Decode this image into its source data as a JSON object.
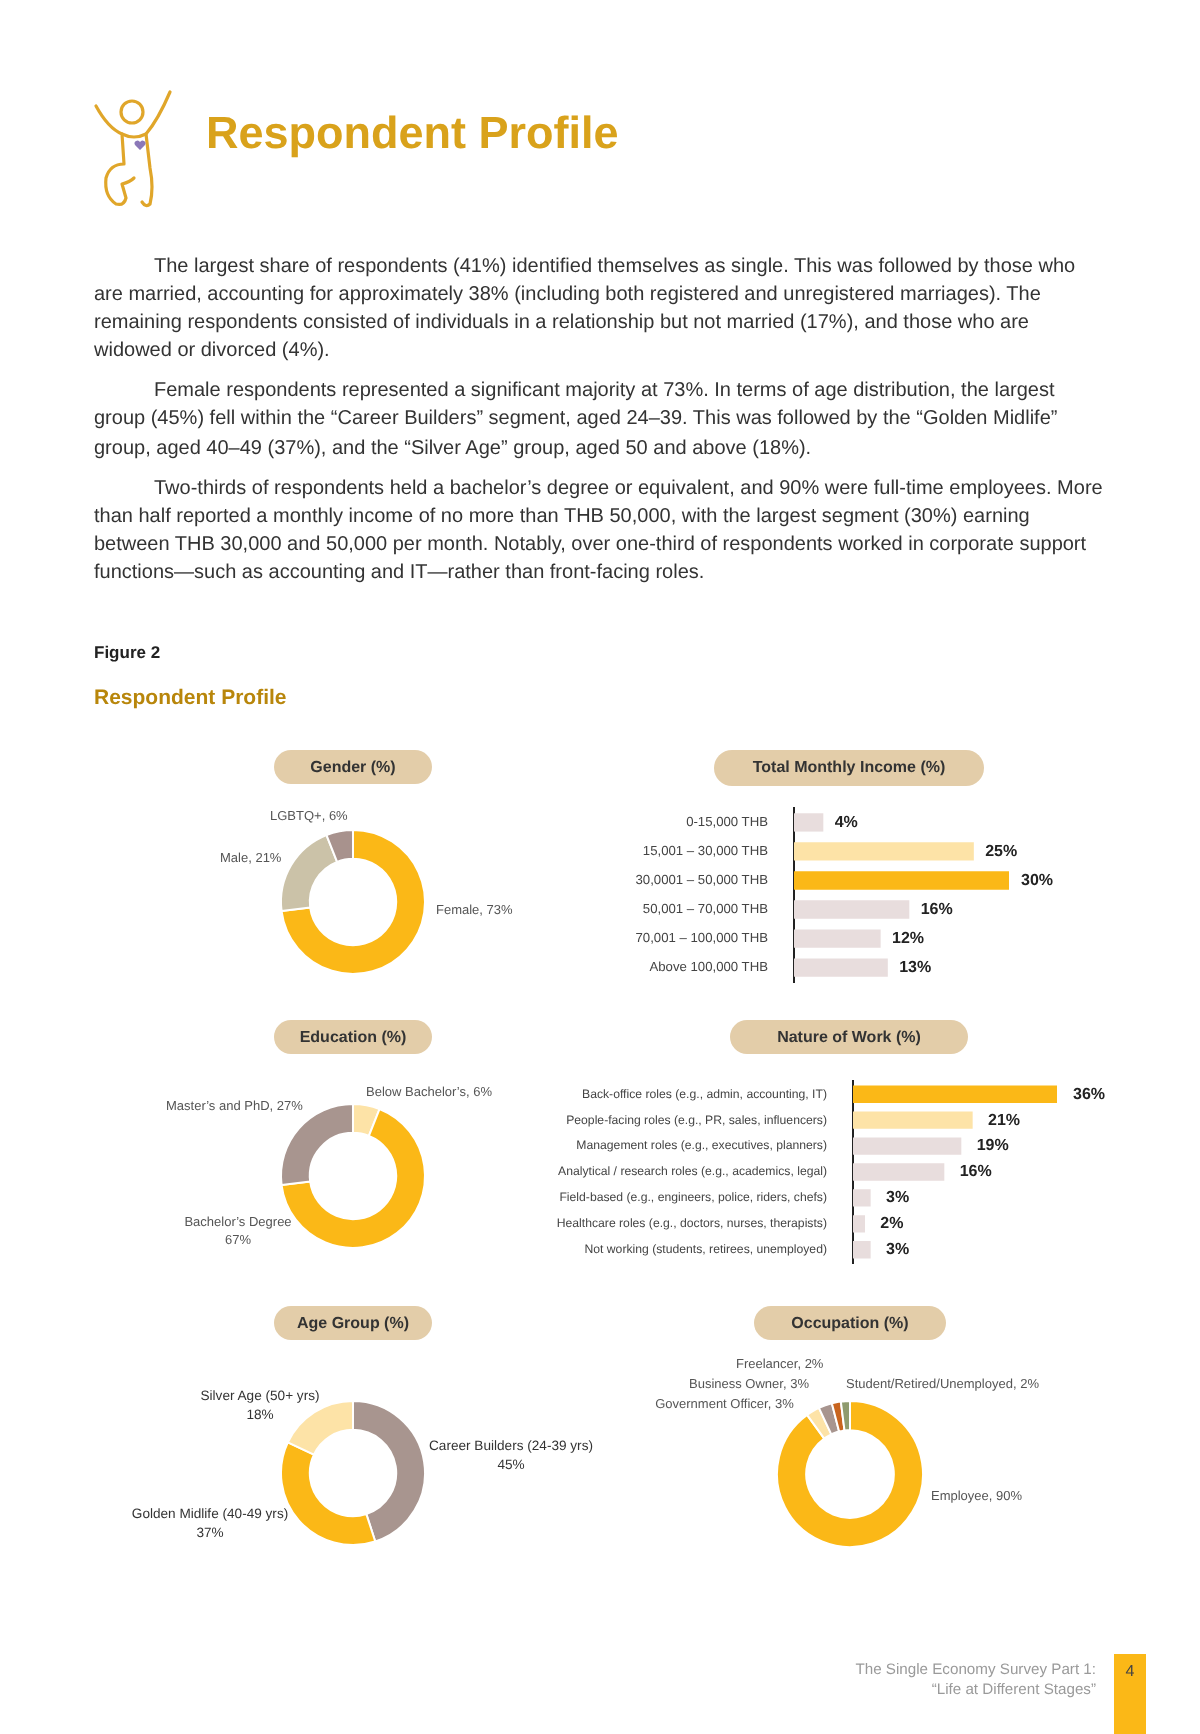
{
  "chart_data": [
    {
      "type": "other",
      "title": "Respondent Profile",
      "annotations": [
        "The largest share of respondents (41%) identified themselves as single. This was followed by those who are married, accounting for approximately 38% (including both registered and unregistered marriages). The remaining respondents consisted of individuals in a relationship but not married (17%), and those who are widowed or divorced (4%).",
        "Female respondents represented a significant majority at 73%. In terms of age distribution, the largest group (45%) fell within the “Career Builders” segment, aged 24–39. This was followed by the “Golden Midlife” group, aged 40–49 (37%), and the “Silver Age” group, aged 50 and above (18%).",
        "Two-thirds of respondents held a bachelor’s degree or equivalent, and 90% were full-time employees. More than half reported a monthly income of no more than THB 50,000, with the largest segment (30%) earning between THB 30,000 and 50,000 per month. Notably, over one-third of respondents worked in corporate support functions—such as accounting and IT—rather than front-facing roles.",
        "Figure 2",
        "Respondent Profile"
      ]
    },
    {
      "type": "donut",
      "title": "Gender (%)",
      "categories": [
        "Female",
        "Male",
        "LGBTQ+"
      ],
      "values": [
        73,
        21,
        6
      ],
      "colors": [
        "#fbb817",
        "#cbc2a8",
        "#a8928d"
      ],
      "value_labels": [
        "73%",
        "21%",
        "6%"
      ]
    },
    {
      "type": "bar",
      "orientation": "horizontal",
      "title": "Total Monthly Income (%)",
      "categories": [
        "0-15,000 THB",
        "15,001 – 30,000 THB",
        "30,0001 – 50,000 THB",
        "50,001 – 70,000 THB",
        "70,001 – 100,000 THB",
        "Above 100,000 THB"
      ],
      "values": [
        4,
        25,
        30,
        16,
        12,
        13
      ],
      "colors": [
        "#e8dddd",
        "#fde3a7",
        "#fbb817",
        "#e8dddd",
        "#e8dddd",
        "#e8dddd"
      ],
      "value_labels": [
        "4%",
        "25%",
        "30%",
        "16%",
        "12%",
        "13%"
      ],
      "tick_labels": "y"
    },
    {
      "type": "donut",
      "title": "Education (%)",
      "categories": [
        "Below Bachelor’s",
        "Bachelor’s Degree",
        "Master’s and PhD"
      ],
      "values": [
        6,
        67,
        27
      ],
      "colors": [
        "#fde3a7",
        "#fbb817",
        "#a8958f"
      ],
      "value_labels": [
        "6%",
        "67%",
        "27%"
      ]
    },
    {
      "type": "bar",
      "orientation": "horizontal",
      "title": "Nature of Work (%)",
      "categories": [
        "Back-office roles (e.g., admin, accounting, IT)",
        "People-facing roles (e.g., PR, sales, influencers)",
        "Management roles (e.g., executives, planners)",
        "Analytical / research roles (e.g., academics, legal)",
        "Field-based (e.g., engineers, police, riders, chefs)",
        "Healthcare roles (e.g., doctors, nurses, therapists)",
        "Not working (students, retirees, unemployed)"
      ],
      "values": [
        36,
        21,
        19,
        16,
        3,
        2,
        3
      ],
      "colors": [
        "#fbb817",
        "#fde3a7",
        "#e8dddd",
        "#e8dddd",
        "#e8dddd",
        "#e8dddd",
        "#e8dddd"
      ],
      "value_labels": [
        "36%",
        "21%",
        "19%",
        "16%",
        "3%",
        "2%",
        "3%"
      ],
      "tick_labels": "y"
    },
    {
      "type": "donut",
      "title": "Age Group (%)",
      "categories": [
        "Career Builders (24-39 yrs)",
        "Golden Midlife (40-49 yrs)",
        "Silver Age (50+ yrs)"
      ],
      "values": [
        45,
        37,
        18
      ],
      "colors": [
        "#a8958f",
        "#fbb817",
        "#fde3a7"
      ],
      "value_labels": [
        "45%",
        "37%",
        "18%"
      ]
    },
    {
      "type": "donut",
      "title": "Occupation (%)",
      "categories": [
        "Employee",
        "Government Officer",
        "Business Owner",
        "Freelancer",
        "Student/Retired/Unemployed"
      ],
      "values": [
        90,
        3,
        3,
        2,
        2
      ],
      "colors": [
        "#fbb817",
        "#fde3a7",
        "#a8958f",
        "#c8641e",
        "#8f9b6e"
      ],
      "value_labels": [
        "90%",
        "3%",
        "3%",
        "2%",
        "2%"
      ]
    },
    {
      "type": "other",
      "annotations": [
        "The Single Economy Survey Part 1: “Life at Different Stages”",
        "4"
      ]
    }
  ]
}
